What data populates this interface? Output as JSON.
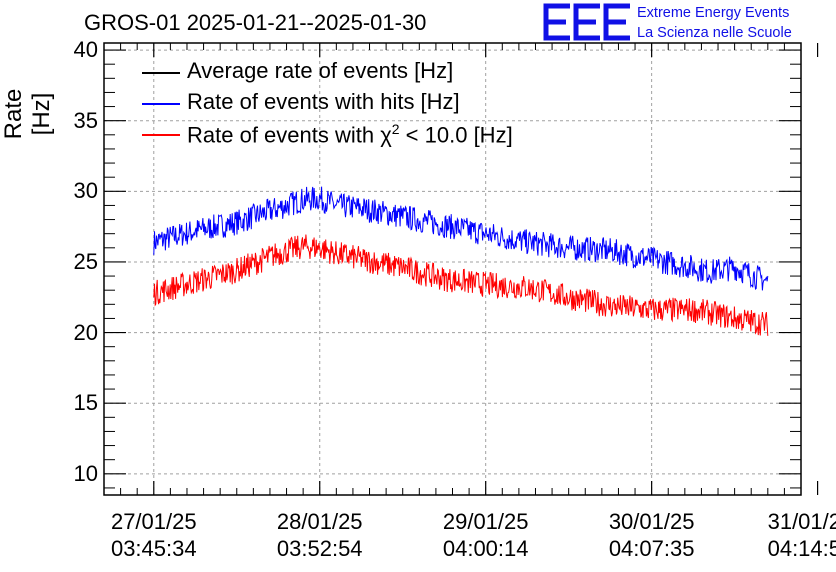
{
  "chart_data": {
    "type": "line",
    "title": "GROS-01 2025-01-21--2025-01-30",
    "ylabel": "Rate [Hz]",
    "xlabel": "",
    "ylim": [
      8.5,
      40.5
    ],
    "y_ticks": [
      10,
      15,
      20,
      25,
      30,
      35,
      40
    ],
    "x_ticks": [
      {
        "date": "27/01/25",
        "time": "03:45:34"
      },
      {
        "date": "28/01/25",
        "time": "03:52:54"
      },
      {
        "date": "29/01/25",
        "time": "04:00:14"
      },
      {
        "date": "30/01/25",
        "time": "04:07:35"
      },
      {
        "date": "31/01/2",
        "time": "04:14:5"
      }
    ],
    "x_day_range": [
      -0.3,
      3.9
    ],
    "grid": true,
    "legend_position": "top-left",
    "series": [
      {
        "name": "Average rate of events [Hz]",
        "color": "#000000",
        "x": [],
        "values": []
      },
      {
        "name": "Rate of events with hits [Hz]",
        "color": "#0000ff",
        "noise": 0.9,
        "x": [
          0,
          0.25,
          0.5,
          0.75,
          0.9,
          1.0,
          1.1,
          1.25,
          1.5,
          1.75,
          2.0,
          2.25,
          2.5,
          2.75,
          3.0,
          3.25,
          3.5,
          3.7,
          3.35
        ],
        "values": [
          26.4,
          27.2,
          27.8,
          28.8,
          29.4,
          29.5,
          29.0,
          28.8,
          28.2,
          27.6,
          27.0,
          26.4,
          26.0,
          25.8,
          25.2,
          24.6,
          24.6,
          23.6,
          24.3
        ]
      },
      {
        "name": "Rate of events with χ² < 10.0 [Hz]",
        "color": "#ff0000",
        "noise": 0.9,
        "x": [
          0,
          0.25,
          0.5,
          0.75,
          0.9,
          1.0,
          1.1,
          1.25,
          1.5,
          1.75,
          2.0,
          2.25,
          2.5,
          2.75,
          3.0,
          3.25,
          3.5,
          3.7,
          3.35
        ],
        "values": [
          22.8,
          23.6,
          24.4,
          25.6,
          26.1,
          26.0,
          25.6,
          25.2,
          24.6,
          23.8,
          23.4,
          23.2,
          22.5,
          21.9,
          21.6,
          21.6,
          21.0,
          20.6,
          21.4
        ]
      }
    ]
  },
  "logo": {
    "letters": "EEE",
    "line1": "Extreme Energy Events",
    "line2": "La Scienza nelle Scuole",
    "color": "#1010e6"
  },
  "legend": {
    "chi_prefix": "Rate of events with χ",
    "chi_sup": "2",
    "chi_suffix": " < 10.0 [Hz]"
  }
}
